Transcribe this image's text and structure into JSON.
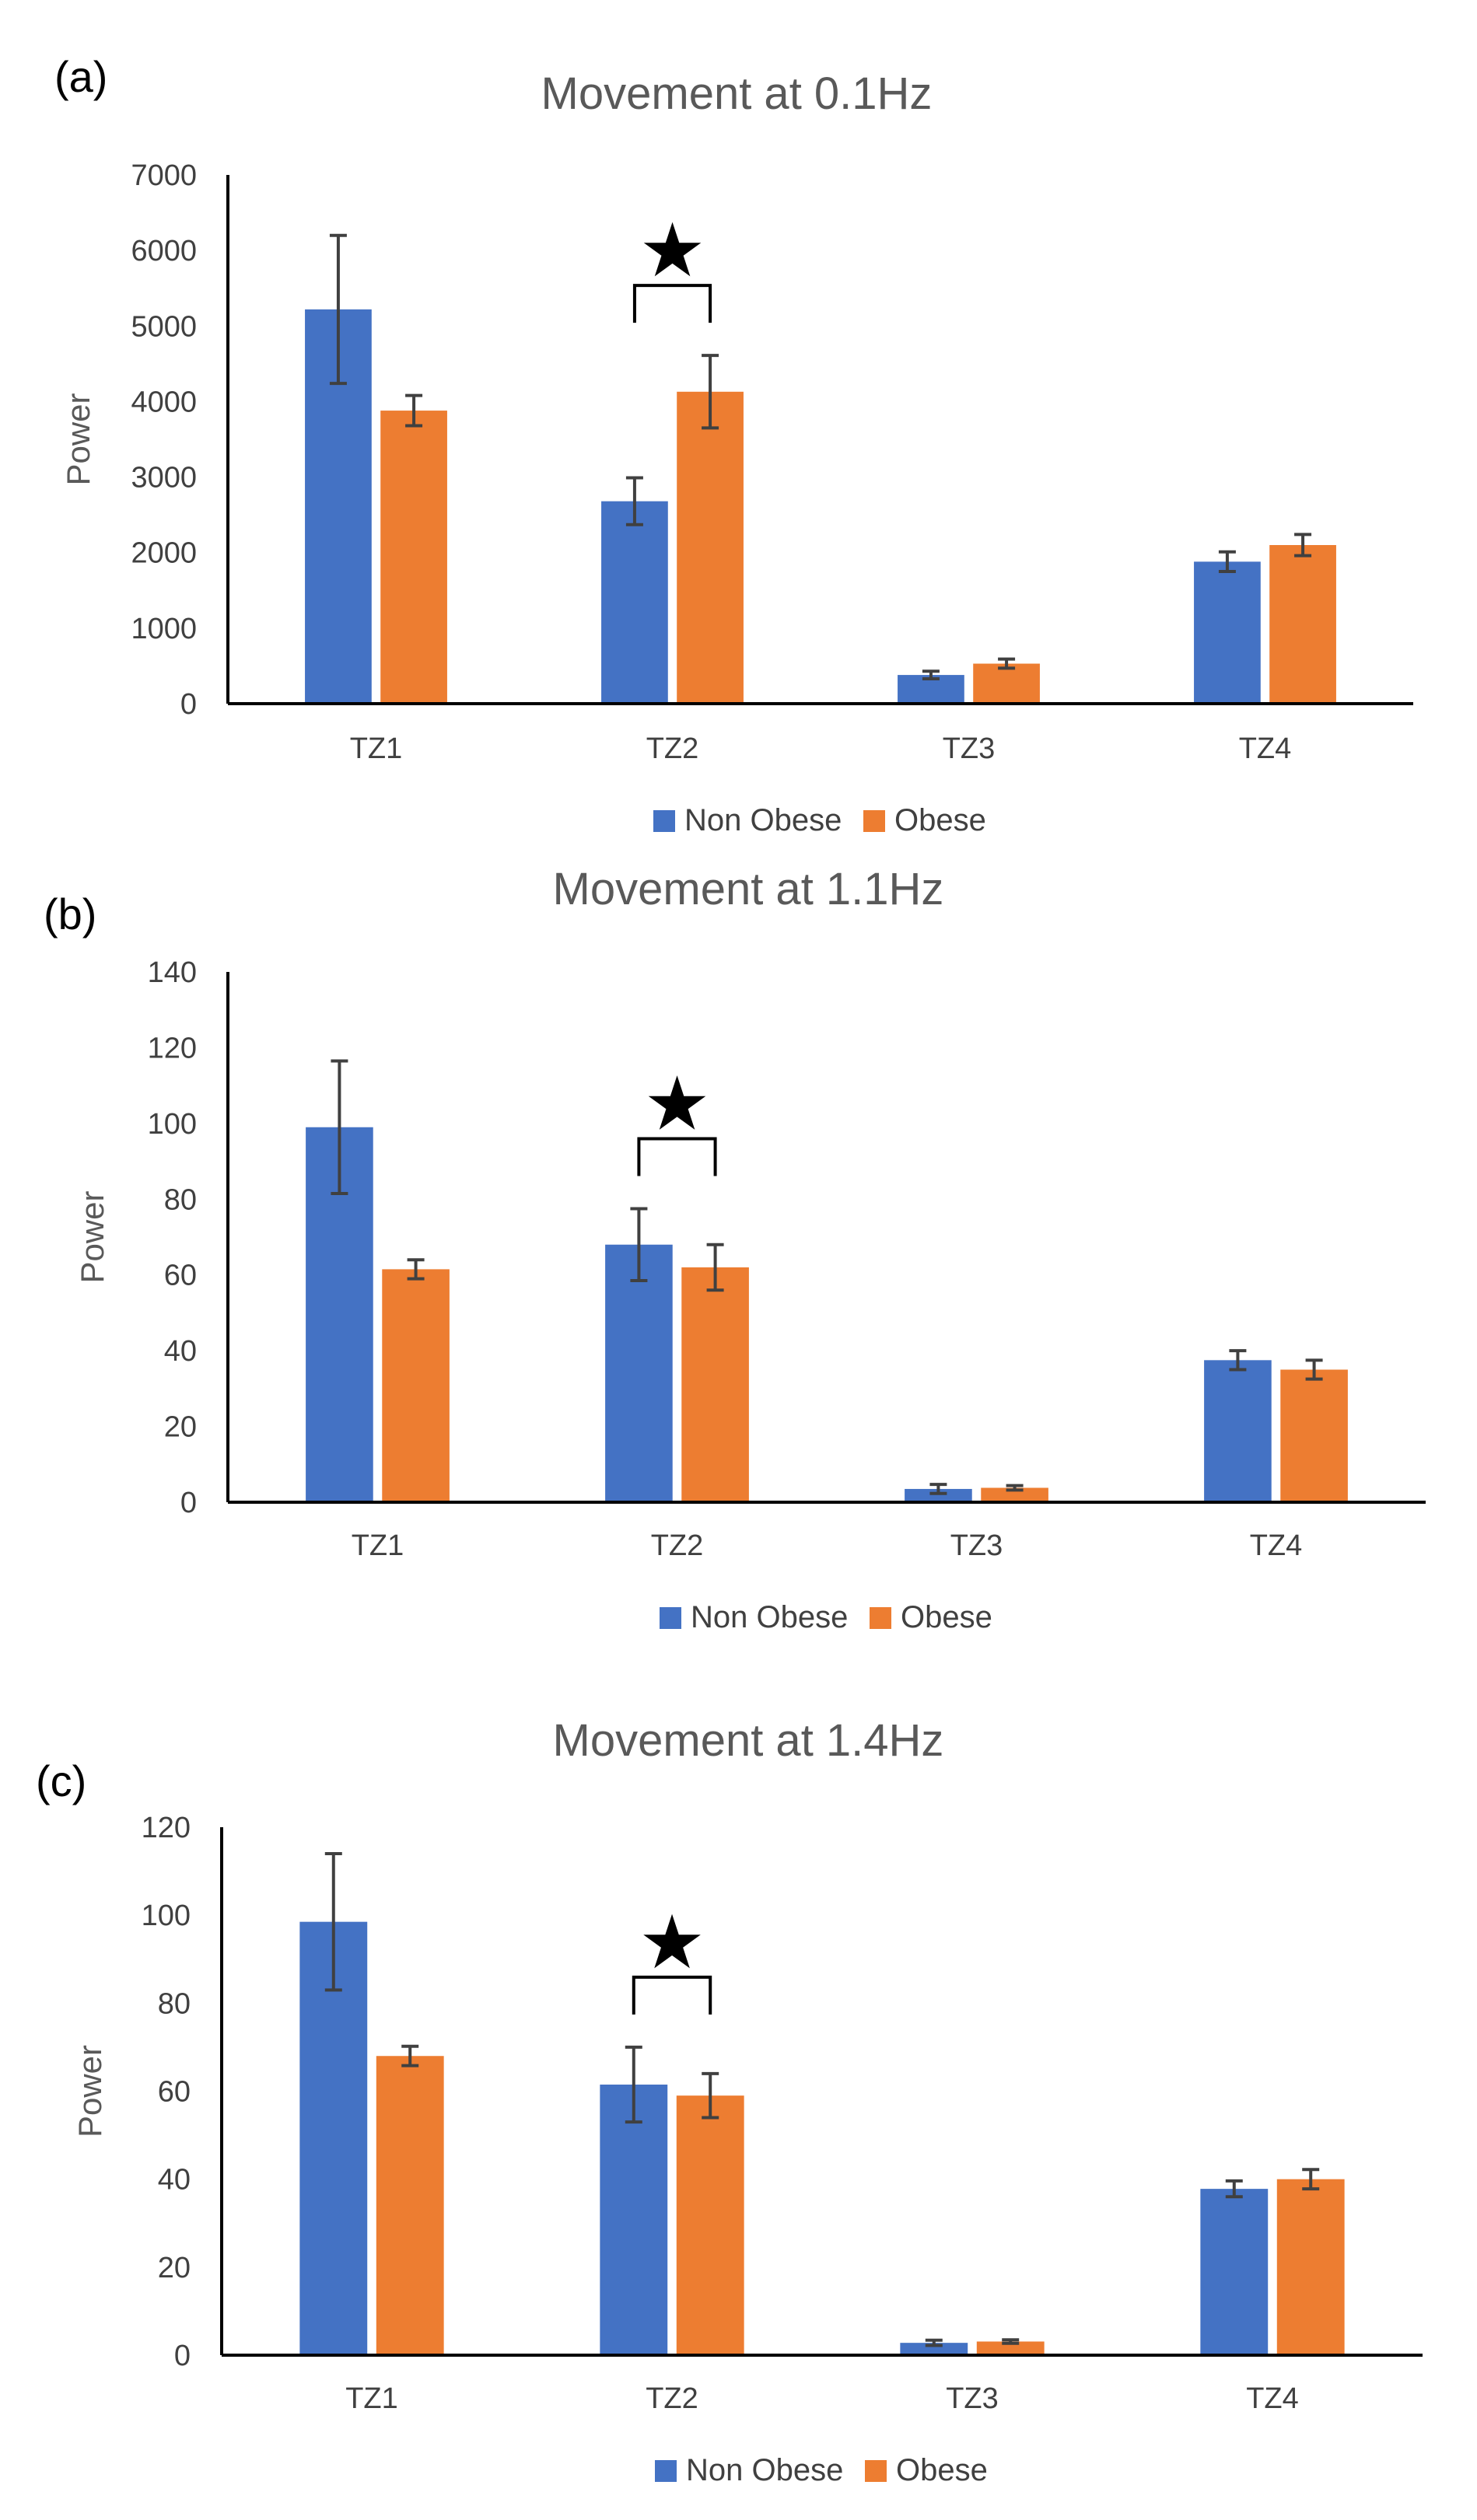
{
  "colors": {
    "non_obese": "#4472C4",
    "obese": "#ED7D31",
    "axis": "#000000",
    "error_bar": "#404040",
    "title": "#595959"
  },
  "significance_marker": "★",
  "chart_data": [
    {
      "type": "bar",
      "panel_label": "(a)",
      "title": "Movement at 0.1Hz",
      "xlabel": "",
      "ylabel": "Power",
      "ylim": [
        0,
        7000
      ],
      "yticks": [
        0,
        1000,
        2000,
        3000,
        4000,
        5000,
        6000,
        7000
      ],
      "grid": false,
      "legend_position": "bottom",
      "categories": [
        "TZ1",
        "TZ2",
        "TZ3",
        "TZ4"
      ],
      "series": [
        {
          "name": "Non Obese",
          "values": [
            5220,
            2680,
            380,
            1880
          ],
          "errors": [
            980,
            310,
            50,
            130
          ]
        },
        {
          "name": "Obese",
          "values": [
            3880,
            4130,
            530,
            2100
          ],
          "errors": [
            200,
            480,
            60,
            140
          ]
        }
      ],
      "annotations": [
        {
          "category": "TZ2",
          "marker": "★",
          "type": "significance-bracket"
        }
      ]
    },
    {
      "type": "bar",
      "panel_label": "(b)",
      "title": "Movement at 1.1Hz",
      "xlabel": "",
      "ylabel": "Power",
      "ylim": [
        0,
        140
      ],
      "yticks": [
        0,
        20,
        40,
        60,
        80,
        100,
        120,
        140
      ],
      "grid": false,
      "legend_position": "bottom",
      "categories": [
        "TZ1",
        "TZ2",
        "TZ3",
        "TZ4"
      ],
      "series": [
        {
          "name": "Non Obese",
          "values": [
            99,
            68,
            3.5,
            37.5
          ],
          "errors": [
            17.5,
            9.5,
            1.2,
            2.5
          ]
        },
        {
          "name": "Obese",
          "values": [
            61.5,
            62,
            3.8,
            35
          ],
          "errors": [
            2.5,
            6,
            0.6,
            2.5
          ]
        }
      ],
      "annotations": [
        {
          "category": "TZ2",
          "marker": "★",
          "type": "significance-bracket"
        }
      ]
    },
    {
      "type": "bar",
      "panel_label": "(c)",
      "title": "Movement at 1.4Hz",
      "xlabel": "",
      "ylabel": "Power",
      "ylim": [
        0,
        120
      ],
      "yticks": [
        0,
        20,
        40,
        60,
        80,
        100,
        120
      ],
      "grid": false,
      "legend_position": "bottom",
      "categories": [
        "TZ1",
        "TZ2",
        "TZ3",
        "TZ4"
      ],
      "series": [
        {
          "name": "Non Obese",
          "values": [
            98.5,
            61.5,
            2.8,
            37.8
          ],
          "errors": [
            15.5,
            8.5,
            0.6,
            1.8
          ]
        },
        {
          "name": "Obese",
          "values": [
            68,
            59,
            3.1,
            40
          ],
          "errors": [
            2.2,
            5,
            0.4,
            2.2
          ]
        }
      ],
      "annotations": [
        {
          "category": "TZ2",
          "marker": "★",
          "type": "significance-bracket"
        }
      ]
    }
  ]
}
